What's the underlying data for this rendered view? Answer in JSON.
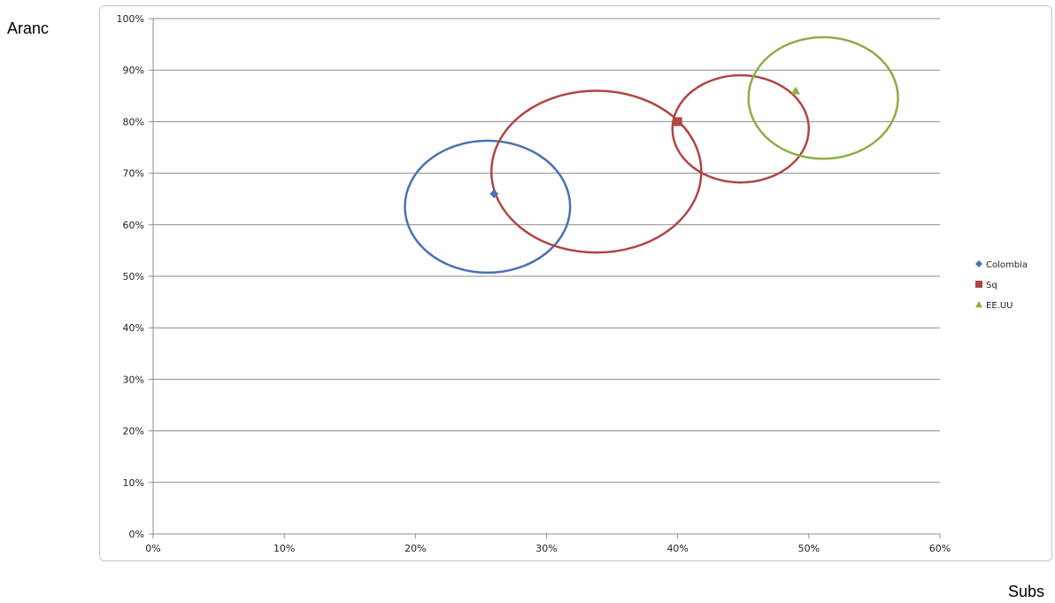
{
  "chart_data": {
    "type": "scatter",
    "title": "",
    "xlabel": "Subs",
    "ylabel": "Aranc",
    "xlim": [
      0,
      60
    ],
    "ylim": [
      0,
      100
    ],
    "x_ticks": [
      "0%",
      "10%",
      "20%",
      "30%",
      "40%",
      "50%",
      "60%"
    ],
    "y_ticks": [
      "0%",
      "10%",
      "20%",
      "30%",
      "40%",
      "50%",
      "60%",
      "70%",
      "80%",
      "90%",
      "100%"
    ],
    "grid": "horizontal",
    "legend_position": "right",
    "series": [
      {
        "name": "Colombia",
        "marker": "diamond",
        "color": "#4a72b0",
        "point": {
          "x": 26,
          "y": 66
        },
        "circle": {
          "cx": 25.5,
          "cy": 63.5,
          "rx": 6.3,
          "ry": 12.8
        }
      },
      {
        "name": "Sq",
        "marker": "square",
        "color": "#b04644",
        "point": {
          "x": 40,
          "y": 80
        },
        "circle": {
          "cx": 33.8,
          "cy": 70.3,
          "rx": 8.0,
          "ry": 15.7
        }
      },
      {
        "name": "Sq",
        "marker": "none",
        "color": "#b04644",
        "legend": false,
        "circle": {
          "cx": 44.8,
          "cy": 78.6,
          "rx": 5.2,
          "ry": 10.4
        }
      },
      {
        "name": "EE.UU",
        "marker": "triangle",
        "color": "#8fad44",
        "point": {
          "x": 49,
          "y": 86
        },
        "circle": {
          "cx": 51.1,
          "cy": 84.6,
          "rx": 5.7,
          "ry": 11.8
        }
      }
    ]
  },
  "legend": {
    "items": [
      {
        "label": "Colombia",
        "marker": "diamond",
        "color": "#4a72b0"
      },
      {
        "label": "Sq",
        "marker": "square",
        "color": "#b04644"
      },
      {
        "label": "EE.UU",
        "marker": "triangle",
        "color": "#8fad44"
      }
    ]
  }
}
